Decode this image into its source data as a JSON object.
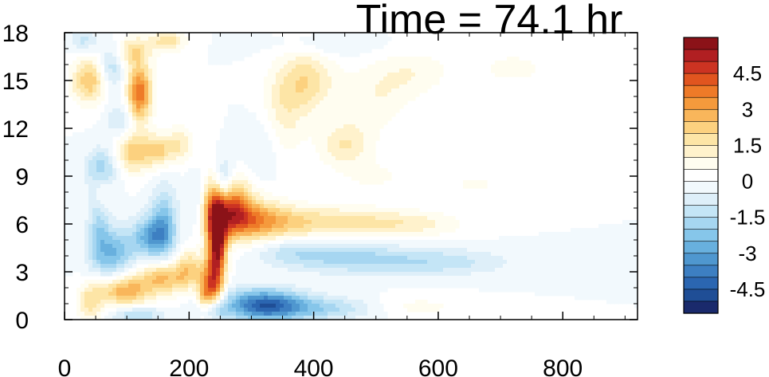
{
  "title": "Time = 74.1 hr",
  "chart_data": {
    "type": "heatmap",
    "title": "Time = 74.1 hr",
    "xlabel": "",
    "ylabel": "",
    "xlim": [
      0,
      920
    ],
    "ylim": [
      0,
      18
    ],
    "x_ticks": [
      0,
      200,
      400,
      600,
      800
    ],
    "y_ticks": [
      0,
      3,
      6,
      9,
      12,
      15,
      18
    ],
    "colorbar": {
      "levels": [
        -5.5,
        -5,
        -4.5,
        -4,
        -3.5,
        -3,
        -2.5,
        -2,
        -1.5,
        -1,
        -0.5,
        0,
        0.5,
        1,
        1.5,
        2,
        2.5,
        3,
        3.5,
        4,
        4.5,
        5,
        5.5
      ],
      "colors": [
        "#1a2a6c",
        "#1f4e96",
        "#2b66b1",
        "#3d7fc2",
        "#4f97cf",
        "#68b0de",
        "#86c6ea",
        "#a6d6f1",
        "#c4e5f6",
        "#deeff9",
        "#f2f9fd",
        "#ffffff",
        "#fffdf0",
        "#fff2cc",
        "#fde5a6",
        "#fcd17f",
        "#f9b65b",
        "#f59a3c",
        "#ee7a28",
        "#e1551f",
        "#cc3322",
        "#b11f22",
        "#8b1218"
      ],
      "labels": [
        "4.5",
        "3",
        "1.5",
        "0",
        "-1.5",
        "-3",
        "-4.5"
      ],
      "label_values": [
        4.5,
        3,
        1.5,
        0,
        -1.5,
        -3,
        -4.5
      ]
    },
    "features": [
      {
        "x": 255,
        "y": 7.2,
        "sx": 28,
        "sy": 1.2,
        "amp": 4.8
      },
      {
        "x": 300,
        "y": 6.2,
        "sx": 45,
        "sy": 0.9,
        "amp": 2.8
      },
      {
        "x": 420,
        "y": 6.1,
        "sx": 80,
        "sy": 0.7,
        "amp": 1.8
      },
      {
        "x": 560,
        "y": 6.0,
        "sx": 60,
        "sy": 0.6,
        "amp": 1.0
      },
      {
        "x": 240,
        "y": 3.0,
        "sx": 10,
        "sy": 3.0,
        "amp": 4.0
      },
      {
        "x": 250,
        "y": 4.8,
        "sx": 9,
        "sy": 1.6,
        "amp": 3.0
      },
      {
        "x": 225,
        "y": 1.2,
        "sx": 9,
        "sy": 1.2,
        "amp": 3.0
      },
      {
        "x": 235,
        "y": 0.5,
        "sx": 14,
        "sy": 0.6,
        "amp": -4.0
      },
      {
        "x": 320,
        "y": 0.9,
        "sx": 45,
        "sy": 0.7,
        "amp": -4.2
      },
      {
        "x": 420,
        "y": 0.7,
        "sx": 60,
        "sy": 0.5,
        "amp": -1.6
      },
      {
        "x": 560,
        "y": 0.8,
        "sx": 60,
        "sy": 0.5,
        "amp": 0.7
      },
      {
        "x": 450,
        "y": 3.9,
        "sx": 70,
        "sy": 0.7,
        "amp": -1.5
      },
      {
        "x": 600,
        "y": 3.6,
        "sx": 80,
        "sy": 0.6,
        "amp": -1.3
      },
      {
        "x": 360,
        "y": 4.3,
        "sx": 40,
        "sy": 0.6,
        "amp": -0.9
      },
      {
        "x": 255,
        "y": 8.2,
        "sx": 12,
        "sy": 1.2,
        "amp": -2.8
      },
      {
        "x": 215,
        "y": 7.2,
        "sx": 15,
        "sy": 1.2,
        "amp": -2.0
      },
      {
        "x": 140,
        "y": 5.2,
        "sx": 22,
        "sy": 0.9,
        "amp": -2.8
      },
      {
        "x": 75,
        "y": 4.2,
        "sx": 25,
        "sy": 1.1,
        "amp": -2.5
      },
      {
        "x": 160,
        "y": 6.3,
        "sx": 15,
        "sy": 1.5,
        "amp": -2.0
      },
      {
        "x": 55,
        "y": 6.5,
        "sx": 12,
        "sy": 1.5,
        "amp": -1.5
      },
      {
        "x": 95,
        "y": 1.8,
        "sx": 30,
        "sy": 0.7,
        "amp": 2.8
      },
      {
        "x": 160,
        "y": 2.6,
        "sx": 30,
        "sy": 0.7,
        "amp": 2.5
      },
      {
        "x": 200,
        "y": 3.3,
        "sx": 15,
        "sy": 0.8,
        "amp": 1.8
      },
      {
        "x": 40,
        "y": 1.0,
        "sx": 15,
        "sy": 0.9,
        "amp": 1.6
      },
      {
        "x": 115,
        "y": 0.3,
        "sx": 30,
        "sy": 0.4,
        "amp": -1.6
      },
      {
        "x": 110,
        "y": 10.5,
        "sx": 20,
        "sy": 0.9,
        "amp": 2.4
      },
      {
        "x": 150,
        "y": 10.6,
        "sx": 15,
        "sy": 0.7,
        "amp": 2.0
      },
      {
        "x": 185,
        "y": 11.0,
        "sx": 15,
        "sy": 0.8,
        "amp": 1.5
      },
      {
        "x": 120,
        "y": 14.2,
        "sx": 14,
        "sy": 1.2,
        "amp": 4.0
      },
      {
        "x": 40,
        "y": 15.0,
        "sx": 20,
        "sy": 1.0,
        "amp": 2.5
      },
      {
        "x": 110,
        "y": 16.8,
        "sx": 20,
        "sy": 0.7,
        "amp": 1.8
      },
      {
        "x": 165,
        "y": 17.5,
        "sx": 20,
        "sy": 0.5,
        "amp": 1.8
      },
      {
        "x": 75,
        "y": 15.8,
        "sx": 15,
        "sy": 1.0,
        "amp": -1.6
      },
      {
        "x": 60,
        "y": 9.5,
        "sx": 18,
        "sy": 0.9,
        "amp": -1.8
      },
      {
        "x": 90,
        "y": 12.5,
        "sx": 15,
        "sy": 0.8,
        "amp": -1.2
      },
      {
        "x": 30,
        "y": 17.5,
        "sx": 15,
        "sy": 0.5,
        "amp": -1.2
      },
      {
        "x": 60,
        "y": 8.0,
        "sx": 10,
        "sy": 0.8,
        "amp": 1.2
      },
      {
        "x": 390,
        "y": 15.0,
        "sx": 30,
        "sy": 1.4,
        "amp": 1.8
      },
      {
        "x": 450,
        "y": 11.0,
        "sx": 30,
        "sy": 1.0,
        "amp": 1.5
      },
      {
        "x": 350,
        "y": 13.0,
        "sx": 25,
        "sy": 2.0,
        "amp": 1.2
      },
      {
        "x": 500,
        "y": 14.0,
        "sx": 40,
        "sy": 1.5,
        "amp": 0.9
      },
      {
        "x": 560,
        "y": 15.5,
        "sx": 40,
        "sy": 1.0,
        "amp": 0.8
      },
      {
        "x": 720,
        "y": 15.8,
        "sx": 60,
        "sy": 1.0,
        "amp": 0.6
      },
      {
        "x": 660,
        "y": 8.5,
        "sx": 30,
        "sy": 0.6,
        "amp": 0.6
      },
      {
        "x": 500,
        "y": 9.0,
        "sx": 40,
        "sy": 0.7,
        "amp": 0.6
      },
      {
        "x": 320,
        "y": 11.0,
        "sx": 20,
        "sy": 1.5,
        "amp": -0.7
      },
      {
        "x": 420,
        "y": 17.2,
        "sx": 60,
        "sy": 0.5,
        "amp": -0.6
      }
    ]
  }
}
